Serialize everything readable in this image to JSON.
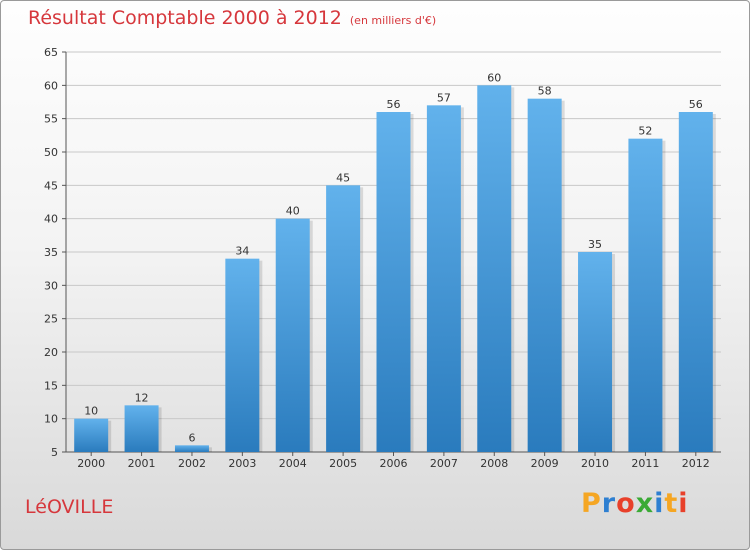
{
  "header": {
    "title": "Résultat Comptable 2000 à 2012",
    "unit": "(en milliers d'€)"
  },
  "commune": "LéOVILLE",
  "logo": {
    "text": "Proxiti",
    "letters": [
      {
        "char": "P",
        "color": "#f5a623"
      },
      {
        "char": "r",
        "color": "#2e7fd1"
      },
      {
        "char": "o",
        "color": "#e8402a"
      },
      {
        "char": "x",
        "color": "#3aaa35"
      },
      {
        "char": "i",
        "color": "#2e7fd1"
      },
      {
        "char": "t",
        "color": "#f5a623"
      },
      {
        "char": "i",
        "color": "#e8402a"
      }
    ]
  },
  "colors": {
    "bar_top": "#62b2ec",
    "bar_bottom": "#2a7bbd",
    "title": "#d6373c",
    "grid": "#c8c8c8"
  },
  "chart_data": {
    "type": "bar",
    "title": "Résultat Comptable 2000 à 2012",
    "subtitle": "(en milliers d'€)",
    "categories": [
      "2000",
      "2001",
      "2002",
      "2003",
      "2004",
      "2005",
      "2006",
      "2007",
      "2008",
      "2009",
      "2010",
      "2011",
      "2012"
    ],
    "values": [
      10,
      12,
      6,
      34,
      40,
      45,
      56,
      57,
      60,
      58,
      35,
      52,
      56
    ],
    "ylim": [
      5,
      65
    ],
    "yticks": [
      5,
      10,
      15,
      20,
      25,
      30,
      35,
      40,
      45,
      50,
      55,
      60,
      65
    ],
    "xlabel": "",
    "ylabel": "",
    "grid": true
  }
}
